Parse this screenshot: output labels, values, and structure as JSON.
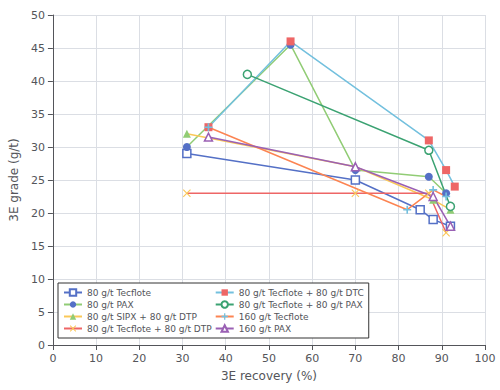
{
  "chart_data": {
    "type": "line",
    "xlabel": "3E recovery (%)",
    "ylabel": "3E grade (g/t)",
    "xlim": [
      0,
      100
    ],
    "ylim": [
      0,
      50
    ],
    "xticks": [
      0,
      10,
      20,
      30,
      40,
      50,
      60,
      70,
      80,
      90,
      100
    ],
    "yticks": [
      0,
      5,
      10,
      15,
      20,
      25,
      30,
      35,
      40,
      45,
      50
    ],
    "grid": true,
    "legend": "lower left",
    "series": [
      {
        "name": "80 g/t Tecflote",
        "marker": "square-open",
        "x": [
          31,
          70,
          85,
          88,
          92
        ],
        "values": [
          29,
          25,
          20.5,
          19,
          18
        ]
      },
      {
        "name": "80 g/t PAX",
        "marker": "circle",
        "x": [
          31,
          55,
          70,
          87,
          91
        ],
        "values": [
          30,
          45.5,
          26.5,
          25.5,
          23
        ]
      },
      {
        "name": "80 g/t SIPX + 80 g/t DTP",
        "marker": "triangle",
        "x": [
          31,
          70,
          88,
          92
        ],
        "values": [
          32,
          27,
          22,
          20.5
        ]
      },
      {
        "name": "80 g/t Tecflote + 80 g/t DTP",
        "marker": "x",
        "x": [
          31,
          70,
          87,
          91
        ],
        "values": [
          23,
          23,
          23,
          17
        ]
      },
      {
        "name": "80 g/t Tecflote + 80 g/t DTC",
        "marker": "square",
        "x": [
          36,
          55,
          87,
          91,
          93
        ],
        "values": [
          33,
          46,
          31,
          26.5,
          24
        ]
      },
      {
        "name": "80 g/t Tecflote + 80 g/t PAX",
        "marker": "circle-open",
        "x": [
          45,
          87,
          92
        ],
        "values": [
          41,
          29.5,
          21
        ]
      },
      {
        "name": "160 g/t Tecflote",
        "marker": "plus",
        "x": [
          36,
          82,
          88,
          91
        ],
        "values": [
          33,
          20.5,
          23.5,
          22.5
        ]
      },
      {
        "name": "160 g/t PAX",
        "marker": "triangle-open",
        "x": [
          36,
          70,
          88,
          92
        ],
        "values": [
          31.5,
          27,
          22.5,
          18
        ]
      }
    ]
  }
}
